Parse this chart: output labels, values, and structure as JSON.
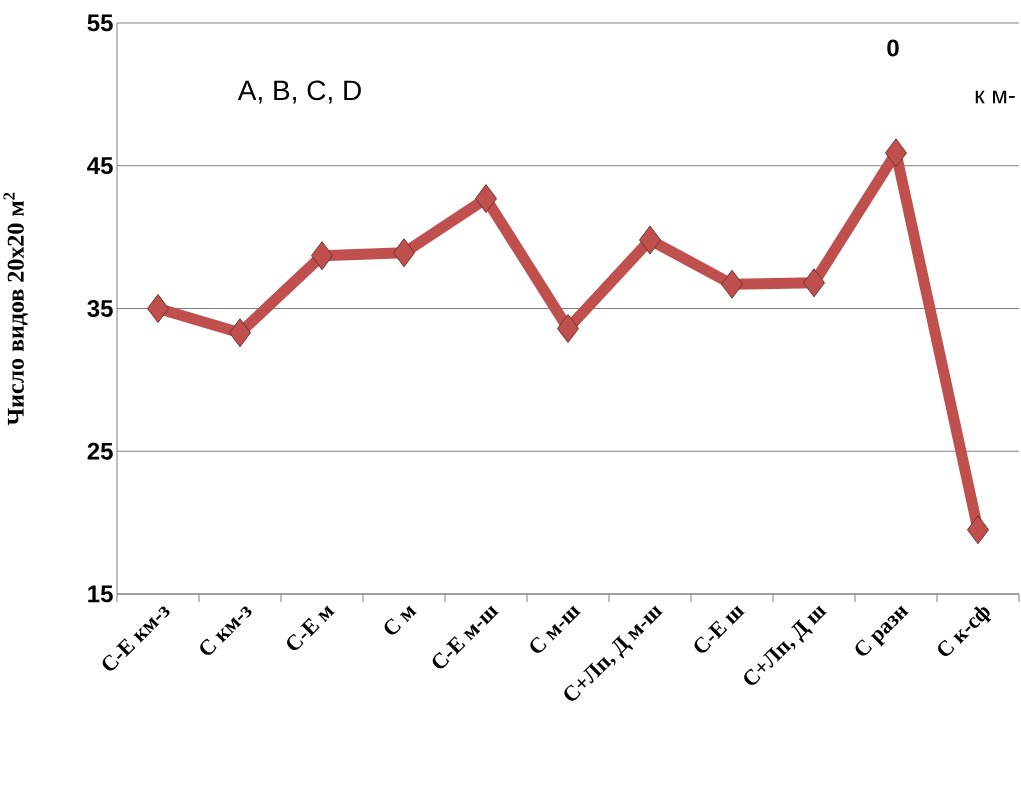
{
  "chart_data": {
    "type": "line",
    "ylabel": "Число видов 20х20 м$^{2}$",
    "categories": [
      "С-Е км-з",
      "С км-з",
      "С-Е м",
      "С м",
      "С-Е м-ш",
      "С м-ш",
      "С+Лп, Д м-ш",
      "С-Е ш",
      "С+Лп, Д ш",
      "С разн",
      "С к-сф"
    ],
    "series": [
      {
        "color": "#c0504d",
        "values": [
          35.0,
          33.3,
          38.7,
          38.9,
          42.7,
          33.6,
          39.8,
          36.7,
          36.8,
          45.9,
          19.5
        ]
      }
    ],
    "ylim": [
      15,
      55
    ],
    "yticks": [
      15,
      25,
      35,
      45,
      55
    ],
    "grid": "y",
    "marker": "diamond",
    "line_style": "solid",
    "annotations": [
      "A, B, C, D",
      "0",
      "к м-"
    ]
  }
}
